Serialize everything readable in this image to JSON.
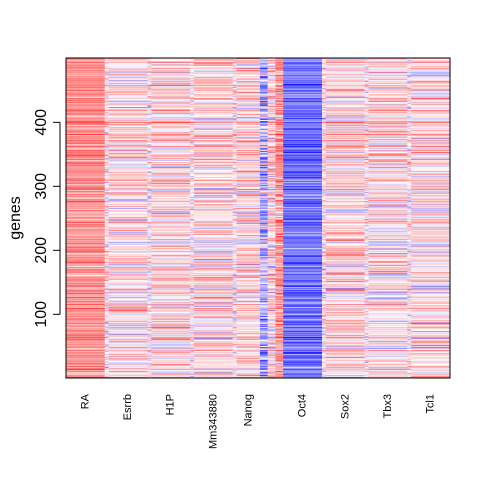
{
  "chart_data": {
    "type": "heatmap",
    "title": "",
    "xlabel": "",
    "ylabel": "genes",
    "y_range": [
      1,
      500
    ],
    "y_ticks": [
      100,
      200,
      300,
      400
    ],
    "columns": [
      {
        "label": "RA",
        "width": 10,
        "mean": 0.42,
        "noise": 0.12,
        "lo": 0.05,
        "hi": 0.85
      },
      {
        "label": "",
        "width": 1,
        "mean": 0.05,
        "noise": 0.2,
        "lo": -0.5,
        "hi": 0.6
      },
      {
        "label": "Esrrb",
        "width": 10,
        "mean": 0.1,
        "noise": 0.22,
        "lo": -0.55,
        "hi": 0.7
      },
      {
        "label": "",
        "width": 1,
        "mean": 0.05,
        "noise": 0.2,
        "lo": -0.5,
        "hi": 0.6
      },
      {
        "label": "H1P",
        "width": 10,
        "mean": 0.12,
        "noise": 0.22,
        "lo": -0.55,
        "hi": 0.7
      },
      {
        "label": "",
        "width": 1,
        "mean": 0.05,
        "noise": 0.2,
        "lo": -0.5,
        "hi": 0.6
      },
      {
        "label": "Mm343880",
        "width": 10,
        "mean": 0.13,
        "noise": 0.22,
        "lo": -0.55,
        "hi": 0.7
      },
      {
        "label": "",
        "width": 1,
        "mean": 0.05,
        "noise": 0.2,
        "lo": -0.5,
        "hi": 0.6
      },
      {
        "label": "Nanog",
        "width": 6,
        "mean": 0.13,
        "noise": 0.22,
        "lo": -0.55,
        "hi": 0.7
      },
      {
        "label": "",
        "width": 2,
        "mean": -0.3,
        "noise": 0.35,
        "lo": -0.95,
        "hi": 0.4
      },
      {
        "label": "",
        "width": 2,
        "mean": 0.1,
        "noise": 0.25,
        "lo": -0.6,
        "hi": 0.6
      },
      {
        "label": "",
        "width": 2,
        "mean": 0.4,
        "noise": 0.2,
        "lo": -0.2,
        "hi": 0.85
      },
      {
        "label": "Oct4",
        "width": 10,
        "mean": -0.55,
        "noise": 0.18,
        "lo": -0.98,
        "hi": -0.1
      },
      {
        "label": "",
        "width": 1,
        "mean": 0.05,
        "noise": 0.2,
        "lo": -0.5,
        "hi": 0.6
      },
      {
        "label": "Sox2",
        "width": 10,
        "mean": 0.12,
        "noise": 0.22,
        "lo": -0.55,
        "hi": 0.7
      },
      {
        "label": "",
        "width": 1,
        "mean": 0.05,
        "noise": 0.2,
        "lo": -0.5,
        "hi": 0.6
      },
      {
        "label": "Tbx3",
        "width": 10,
        "mean": 0.1,
        "noise": 0.22,
        "lo": -0.55,
        "hi": 0.7
      },
      {
        "label": "",
        "width": 1,
        "mean": 0.05,
        "noise": 0.2,
        "lo": -0.5,
        "hi": 0.6
      },
      {
        "label": "Tcl1",
        "width": 10,
        "mean": 0.1,
        "noise": 0.22,
        "lo": -0.55,
        "hi": 0.7
      }
    ],
    "color_scale": {
      "low": "#0000ff",
      "mid": "#ffffff",
      "high": "#ff0000"
    },
    "grid": false,
    "legend": "none"
  }
}
